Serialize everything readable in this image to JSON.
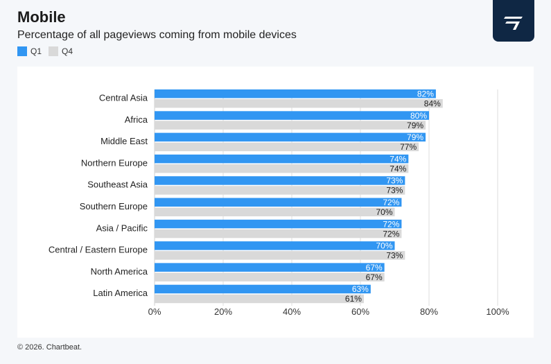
{
  "header": {
    "title": "Mobile",
    "subtitle": "Percentage of all pageviews coming from mobile devices"
  },
  "footer": {
    "copyright": "© 2026. Chartbeat."
  },
  "logo": {
    "icon": "chartbeat-logo-icon"
  },
  "colors": {
    "q1": "#3196f2",
    "q4": "#d9d9d9",
    "logo_bg": "#0f2744"
  },
  "chart_data": {
    "type": "bar",
    "orientation": "horizontal",
    "title": "Mobile",
    "subtitle": "Percentage of all pageviews coming from mobile devices",
    "categories": [
      "Central Asia",
      "Africa",
      "Middle East",
      "Northern Europe",
      "Southeast Asia",
      "Southern Europe",
      "Asia / Pacific",
      "Central / Eastern Europe",
      "North America",
      "Latin America"
    ],
    "series": [
      {
        "name": "Q1",
        "values": [
          82,
          80,
          79,
          74,
          73,
          72,
          72,
          70,
          67,
          63
        ],
        "labels": [
          "82%",
          "80%",
          "79%",
          "74%",
          "73%",
          "72%",
          "72%",
          "70%",
          "67%",
          "63%"
        ]
      },
      {
        "name": "Q4",
        "values": [
          84,
          79,
          77,
          74,
          73,
          70,
          72,
          73,
          67,
          61
        ],
        "labels": [
          "84%",
          "79%",
          "77%",
          "74%",
          "73%",
          "70%",
          "72%",
          "73%",
          "67%",
          "61%"
        ]
      }
    ],
    "xlim": [
      0,
      100
    ],
    "ticks": [
      0,
      20,
      40,
      60,
      80,
      100
    ],
    "tick_labels": [
      "0%",
      "20%",
      "40%",
      "60%",
      "80%",
      "100%"
    ],
    "grid": true,
    "legend_position": "top-left"
  }
}
